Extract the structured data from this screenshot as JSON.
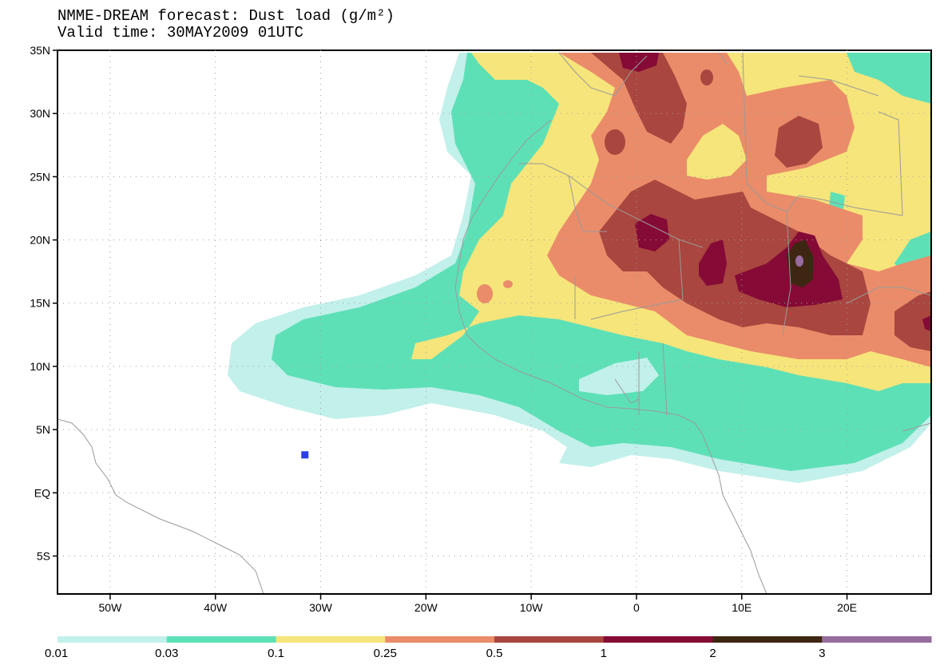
{
  "title": {
    "line1": "NMME-DREAM forecast: Dust load (g/m²)",
    "line2": "Valid time: 30MAY2009 01UTC"
  },
  "axes": {
    "lat_labels": [
      "35N",
      "30N",
      "25N",
      "20N",
      "15N",
      "10N",
      "5N",
      "EQ",
      "5S"
    ],
    "lat_values": [
      35,
      30,
      25,
      20,
      15,
      10,
      5,
      0,
      -5
    ],
    "lon_labels": [
      "50W",
      "40W",
      "30W",
      "20W",
      "10W",
      "0",
      "10E",
      "20E"
    ],
    "lon_values": [
      -50,
      -40,
      -30,
      -20,
      -10,
      0,
      10,
      20
    ],
    "lon_range": [
      -55,
      28
    ],
    "lat_range": [
      -8,
      35
    ]
  },
  "colorbar": {
    "colors": [
      "#c2f0ea",
      "#5ee0b7",
      "#f6e57a",
      "#ea8c6a",
      "#a9463f",
      "#850a36",
      "#3e2712",
      "#976c9f"
    ],
    "labels": [
      "0.01",
      "0.03",
      "0.1",
      "0.25",
      "0.5",
      "1",
      "2",
      "3"
    ]
  },
  "marker": {
    "color": "#2a3fe6",
    "lon": -31.5,
    "lat": 3
  }
}
